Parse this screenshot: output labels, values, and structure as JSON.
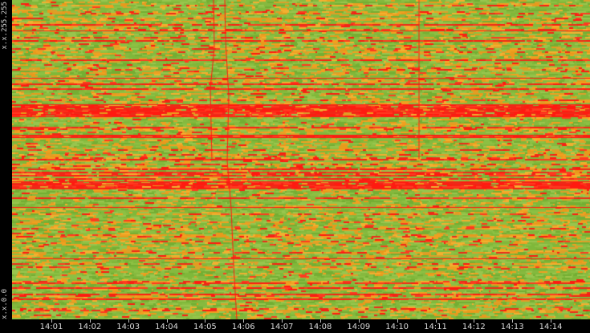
{
  "chart_data": {
    "type": "heatmap",
    "title": "",
    "xlabel": "",
    "ylabel": "",
    "y_labels": [
      "x.x.255.255",
      "x.x.0.0"
    ],
    "x_ticks": [
      "14:01",
      "14:02",
      "14:03",
      "14:04",
      "14:05",
      "14:06",
      "14:07",
      "14:08",
      "14:09",
      "14:10",
      "14:11",
      "14:12",
      "14:13",
      "14:14"
    ],
    "colors": {
      "low": "#7fb83a",
      "mid": "#f0a020",
      "high": "#ff1a10",
      "background": "#000000"
    },
    "grid": false,
    "legend": "none"
  }
}
